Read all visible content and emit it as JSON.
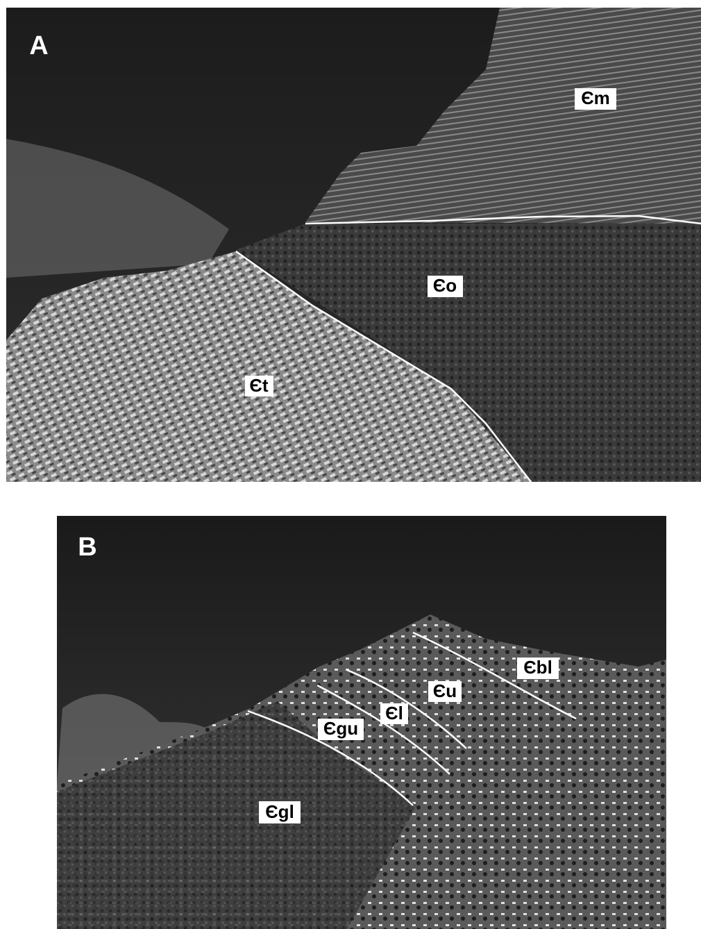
{
  "panels": [
    {
      "label": "A",
      "units": [
        "Єm",
        "Єo",
        "Єt"
      ]
    },
    {
      "label": "B",
      "units": [
        "Єbl",
        "Єu",
        "Єl",
        "Єgu",
        "Єgl"
      ]
    }
  ]
}
